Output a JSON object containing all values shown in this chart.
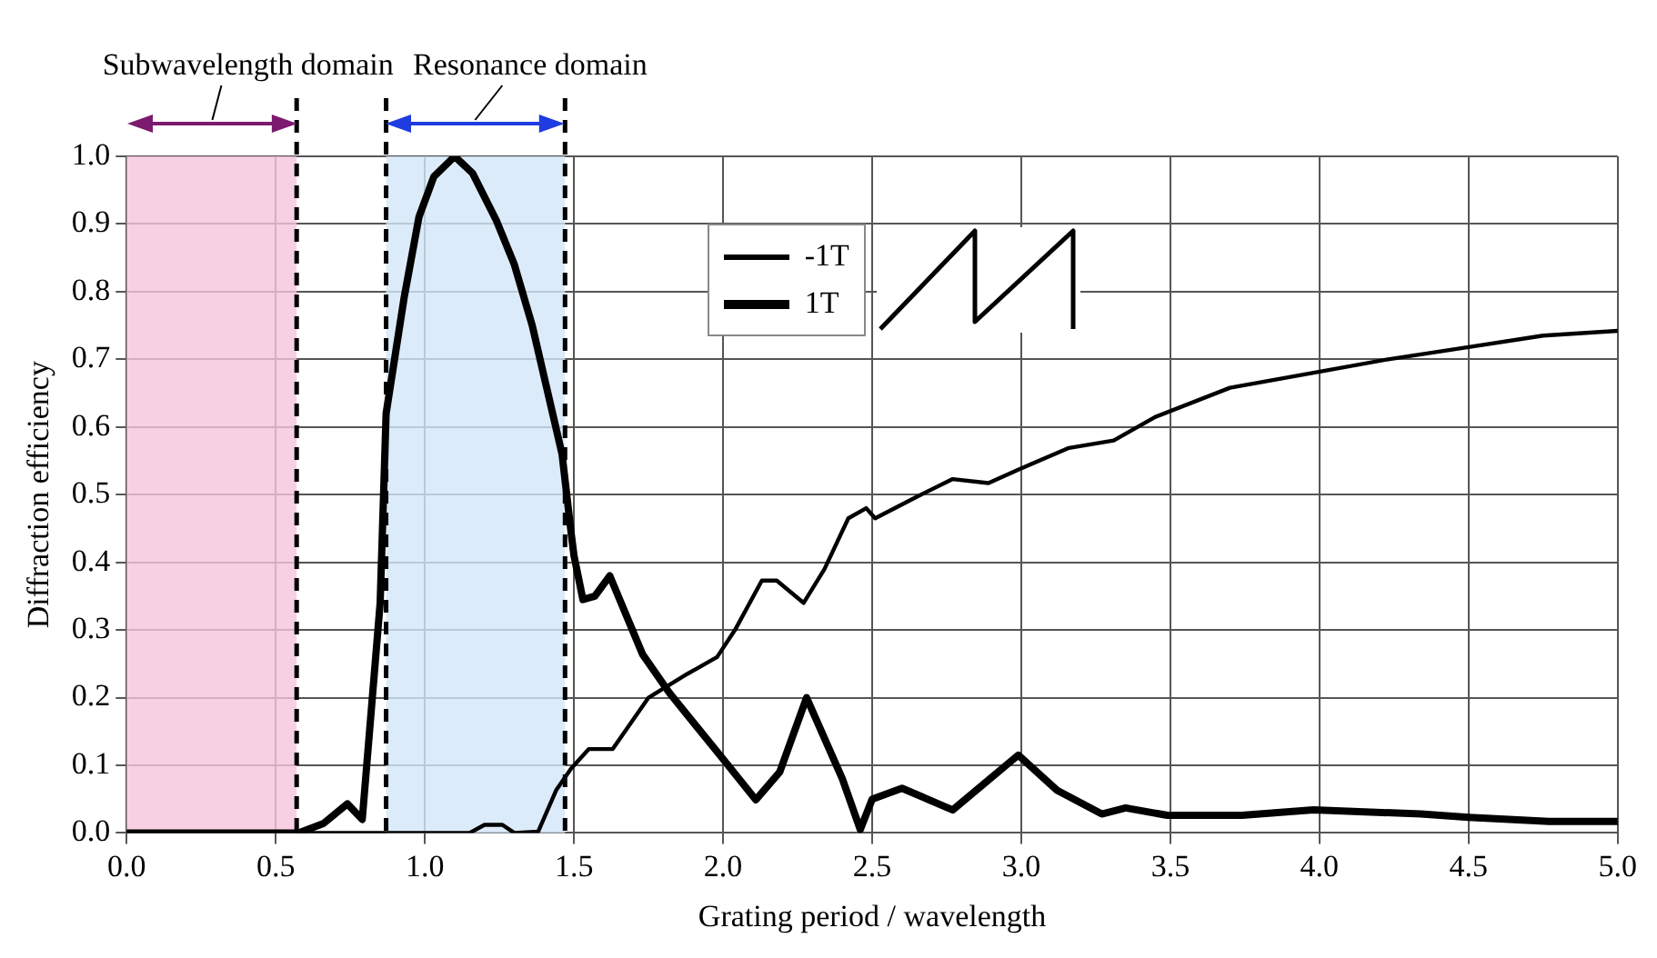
{
  "chart_data": {
    "type": "line",
    "xlabel": "Grating period / wavelength",
    "ylabel": "Diffraction efficiency",
    "xlim": [
      0,
      5
    ],
    "ylim": [
      0,
      1
    ],
    "xticks": [
      {
        "value": 0,
        "label": "0.0"
      },
      0.5,
      {
        "value": 1,
        "label": "1.0"
      },
      1.5,
      {
        "value": 2,
        "label": "2.0"
      },
      2.5,
      {
        "value": 3,
        "label": "3.0"
      },
      3.5,
      {
        "value": 4,
        "label": "4.0"
      },
      4.5,
      {
        "value": 5,
        "label": "5.0"
      }
    ],
    "yticks": [
      {
        "value": 0,
        "label": "0.0"
      },
      0.1,
      0.2,
      0.3,
      0.4,
      0.5,
      0.6,
      0.7,
      0.8,
      0.9,
      {
        "value": 1,
        "label": "1.0"
      }
    ],
    "grid": true,
    "legend": "top",
    "line_style": "solid",
    "marker": "none",
    "series": [
      {
        "name": "-1T",
        "color": "#000000",
        "x": [
          0,
          1.15,
          1.2,
          1.26,
          1.3,
          1.38,
          1.44,
          1.49,
          1.55,
          1.63,
          1.75,
          1.88,
          1.98,
          2.04,
          2.13,
          2.18,
          2.27,
          2.34,
          2.42,
          2.48,
          2.51,
          2.65,
          2.77,
          2.89,
          2.99,
          3.16,
          3.31,
          3.45,
          3.7,
          3.98,
          4.23,
          4.5,
          4.75,
          5.0
        ],
        "values": [
          0,
          0,
          0.012,
          0.012,
          0,
          0.002,
          0.063,
          0.095,
          0.124,
          0.124,
          0.2,
          0.235,
          0.26,
          0.3,
          0.373,
          0.373,
          0.34,
          0.39,
          0.465,
          0.48,
          0.465,
          0.497,
          0.523,
          0.517,
          0.537,
          0.569,
          0.58,
          0.615,
          0.658,
          0.68,
          0.7,
          0.718,
          0.735,
          0.742
        ]
      },
      {
        "name": "1T",
        "color": "#000000",
        "x": [
          0,
          0.576,
          0.66,
          0.74,
          0.79,
          0.85,
          0.87,
          0.93,
          0.98,
          1.03,
          1.1,
          1.16,
          1.24,
          1.3,
          1.36,
          1.41,
          1.46,
          1.49,
          1.5,
          1.53,
          1.57,
          1.62,
          1.73,
          1.82,
          1.98,
          2.11,
          2.19,
          2.28,
          2.4,
          2.46,
          2.5,
          2.6,
          2.77,
          2.99,
          3.12,
          3.27,
          3.35,
          3.49,
          3.74,
          3.98,
          4.34,
          4.5,
          4.77,
          5.0
        ],
        "values": [
          0,
          0,
          0.014,
          0.043,
          0.02,
          0.34,
          0.62,
          0.79,
          0.91,
          0.97,
          1.0,
          0.975,
          0.905,
          0.84,
          0.75,
          0.655,
          0.56,
          0.445,
          0.41,
          0.345,
          0.35,
          0.38,
          0.264,
          0.207,
          0.12,
          0.049,
          0.09,
          0.2,
          0.08,
          0.005,
          0.05,
          0.066,
          0.034,
          0.115,
          0.063,
          0.028,
          0.037,
          0.026,
          0.026,
          0.034,
          0.028,
          0.023,
          0.017,
          0.017
        ]
      }
    ],
    "bands": [
      {
        "axis": "x",
        "from": 0,
        "to": 0.57,
        "label": "Subwavelength domain",
        "color": "#f6c4dc"
      },
      {
        "axis": "x",
        "from": 0.87,
        "to": 1.47,
        "label": "Resonance domain",
        "color": "#d3e6f7"
      }
    ],
    "ref_lines": [
      {
        "axis": "x",
        "value": 0.57,
        "color": "#000000",
        "line_style": "dashed"
      },
      {
        "axis": "x",
        "value": 0.87,
        "color": "#000000",
        "line_style": "dashed"
      },
      {
        "axis": "x",
        "value": 1.47,
        "color": "#000000",
        "line_style": "dashed"
      }
    ]
  }
}
